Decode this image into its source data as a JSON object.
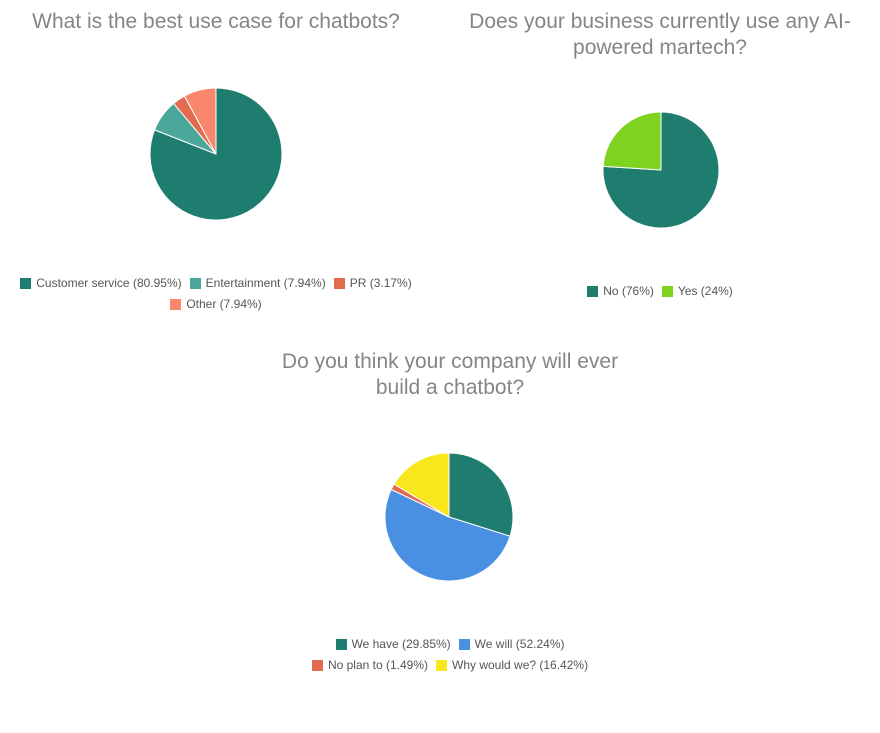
{
  "chart_data": [
    {
      "type": "pie",
      "title": [
        "What is the best use case for chatbots?"
      ],
      "slices": [
        {
          "label": "Customer service",
          "value": 80.95,
          "legend": "Customer service (80.95%)",
          "color": "#1f7d6f"
        },
        {
          "label": "Entertainment",
          "value": 7.94,
          "legend": "Entertainment (7.94%)",
          "color": "#4aa79a"
        },
        {
          "label": "PR",
          "value": 3.17,
          "legend": "PR (3.17%)",
          "color": "#e36a4f"
        },
        {
          "label": "Other",
          "value": 7.94,
          "legend": "Other (7.94%)",
          "color": "#f8876d"
        }
      ],
      "legend_rows": [
        [
          0,
          1,
          2
        ],
        [
          3
        ]
      ],
      "legend_placement": "bottom"
    },
    {
      "type": "pie",
      "title": [
        "Does your business currently use any AI-",
        "powered martech?"
      ],
      "slices": [
        {
          "label": "No",
          "value": 76,
          "legend": "No (76%)",
          "color": "#1f7d6f"
        },
        {
          "label": "Yes",
          "value": 24,
          "legend": "Yes (24%)",
          "color": "#7ed321"
        }
      ],
      "legend_rows": [
        [
          0,
          1
        ]
      ],
      "legend_placement": "bottom"
    },
    {
      "type": "pie",
      "title": [
        "Do you think your company will ever",
        "build a chatbot?"
      ],
      "slices": [
        {
          "label": "We have",
          "value": 29.85,
          "legend": "We have (29.85%)",
          "color": "#1f7d6f"
        },
        {
          "label": "We will",
          "value": 52.24,
          "legend": "We will (52.24%)",
          "color": "#4a90e2"
        },
        {
          "label": "No plan to",
          "value": 1.49,
          "legend": "No plan to (1.49%)",
          "color": "#e36a4f"
        },
        {
          "label": "Why would we?",
          "value": 16.42,
          "legend": "Why would we? (16.42%)",
          "color": "#f8e71c"
        }
      ],
      "legend_rows": [
        [
          0,
          1
        ],
        [
          2,
          3
        ]
      ],
      "legend_placement": "bottom"
    }
  ]
}
